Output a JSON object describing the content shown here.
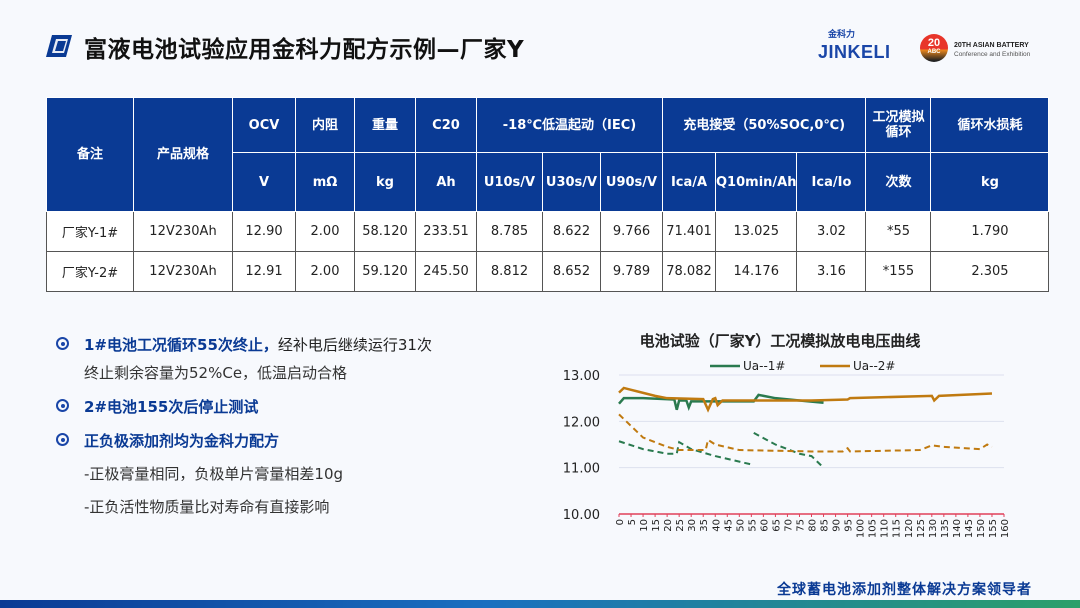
{
  "header": {
    "title": "富液电池试验应用金科力配方示例—厂家Y",
    "logo_cn": "金科力",
    "logo_en": "JINKELI",
    "event_badge": "20",
    "event_badge_sub": "ABC",
    "event_line1": "20TH ASIAN BATTERY",
    "event_line2": "Conference and Exhibition"
  },
  "table": {
    "header_row1": [
      "备注",
      "产品规格",
      "OCV",
      "内阻",
      "重量",
      "C20",
      "-18℃低温起动（IEC)",
      "充电接受（50%SOC,0℃)",
      "工况模拟循环",
      "循环水损耗"
    ],
    "header_row2": [
      "V",
      "mΩ",
      "kg",
      "Ah",
      "U10s/V",
      "U30s/V",
      "U90s/V",
      "Ica/A",
      "Q10min/Ah",
      "Ica/Io",
      "次数",
      "kg"
    ],
    "rows": [
      [
        "厂家Y-1#",
        "12V230Ah",
        "12.90",
        "2.00",
        "58.120",
        "233.51",
        "8.785",
        "8.622",
        "9.766",
        "71.401",
        "13.025",
        "3.02",
        "*55",
        "1.790"
      ],
      [
        "厂家Y-2#",
        "12V230Ah",
        "12.91",
        "2.00",
        "59.120",
        "245.50",
        "8.812",
        "8.652",
        "9.789",
        "78.082",
        "14.176",
        "3.16",
        "*155",
        "2.305"
      ]
    ]
  },
  "bullets": {
    "b1_bold": "1#电池工况循环55次终止，",
    "b1_rest": "经补电后继续运行31次",
    "b1_line2": "终止剩余容量为52%Ce，低温启动合格",
    "b2": "2#电池155次后停止测试",
    "b3_a": "正负极添加剂均为",
    "b3_b": "金科力配方",
    "s1": "-正极膏量相同，负极单片膏量相差10g",
    "s2": "-正负活性物质量比对寿命有直接影响"
  },
  "footer": {
    "slogan": "全球蓄电池添加剂整体解决方案领导者"
  },
  "colors": {
    "primary": "#0a3a94",
    "series1": "#2a7a4f",
    "series2": "#c07a10",
    "axis": "#e0405a"
  },
  "chart_data": {
    "type": "line",
    "title": "电池试验（厂家Y）工况模拟放电电压曲线",
    "xlim": [
      0,
      160
    ],
    "ylim": [
      10,
      13
    ],
    "xticks": [
      0,
      5,
      10,
      15,
      20,
      25,
      30,
      35,
      40,
      45,
      50,
      55,
      60,
      65,
      70,
      75,
      80,
      85,
      90,
      95,
      100,
      105,
      110,
      115,
      120,
      125,
      130,
      135,
      140,
      145,
      150,
      155,
      160
    ],
    "yticks": [
      "10.00",
      "11.00",
      "12.00",
      "13.00"
    ],
    "grid": true,
    "legend": "top",
    "series": [
      {
        "name": "Ua--1#",
        "color": "#2a7a4f",
        "dashed": false,
        "segments": [
          [
            [
              0,
              12.38
            ],
            [
              2,
              12.5
            ],
            [
              10,
              12.5
            ],
            [
              23,
              12.47
            ],
            [
              24,
              12.25
            ],
            [
              25,
              12.45
            ],
            [
              28,
              12.45
            ],
            [
              29,
              12.3
            ],
            [
              30,
              12.43
            ],
            [
              56,
              12.43
            ],
            [
              58,
              12.57
            ],
            [
              65,
              12.5
            ],
            [
              75,
              12.45
            ],
            [
              85,
              12.4
            ]
          ]
        ]
      },
      {
        "name": "Ua--2#",
        "color": "#c07a10",
        "dashed": false,
        "segments": [
          [
            [
              0,
              12.62
            ],
            [
              2,
              12.72
            ],
            [
              5,
              12.68
            ],
            [
              15,
              12.55
            ],
            [
              20,
              12.5
            ],
            [
              35,
              12.48
            ],
            [
              37,
              12.25
            ],
            [
              39,
              12.48
            ],
            [
              40,
              12.5
            ],
            [
              41,
              12.35
            ],
            [
              43,
              12.45
            ],
            [
              80,
              12.45
            ],
            [
              95,
              12.47
            ],
            [
              96,
              12.5
            ],
            [
              130,
              12.55
            ],
            [
              131,
              12.45
            ],
            [
              133,
              12.55
            ],
            [
              155,
              12.6
            ]
          ]
        ]
      },
      {
        "color": "#2a7a4f",
        "dashed": true,
        "segments": [
          [
            [
              0,
              11.57
            ],
            [
              10,
              11.4
            ],
            [
              20,
              11.3
            ],
            [
              24,
              11.3
            ],
            [
              25,
              11.55
            ],
            [
              30,
              11.4
            ],
            [
              40,
              11.25
            ],
            [
              55,
              11.07
            ]
          ],
          [
            [
              56,
              11.75
            ],
            [
              65,
              11.5
            ],
            [
              75,
              11.3
            ],
            [
              80,
              11.25
            ],
            [
              85,
              11.0
            ]
          ]
        ]
      },
      {
        "color": "#c07a10",
        "dashed": true,
        "segments": [
          [
            [
              0,
              12.15
            ],
            [
              5,
              11.9
            ],
            [
              10,
              11.65
            ],
            [
              20,
              11.45
            ],
            [
              25,
              11.38
            ],
            [
              36,
              11.38
            ],
            [
              37,
              11.6
            ],
            [
              40,
              11.5
            ],
            [
              50,
              11.38
            ],
            [
              80,
              11.35
            ],
            [
              93,
              11.35
            ],
            [
              95,
              11.42
            ],
            [
              96,
              11.35
            ],
            [
              125,
              11.38
            ],
            [
              130,
              11.48
            ],
            [
              135,
              11.45
            ],
            [
              150,
              11.4
            ],
            [
              153,
              11.5
            ],
            [
              155,
              11.45
            ]
          ]
        ]
      }
    ]
  }
}
